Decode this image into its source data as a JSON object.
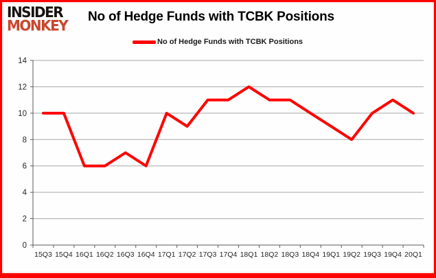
{
  "logo": {
    "line1": "INSIDER",
    "line2": "MONKEY"
  },
  "header": {
    "title": "No of Hedge Funds with TCBK Positions"
  },
  "legend": {
    "label": "No of Hedge Funds with TCBK Positions"
  },
  "colors": {
    "line": "#fe0000",
    "border": "#fe0000",
    "grid": "#a6a6a6",
    "axis": "#595959",
    "tick_label": "#262626",
    "logo_black": "#171310",
    "logo_red": "#c8472e",
    "background": "#fefefe"
  },
  "chart_data": {
    "type": "line",
    "title": "No of Hedge Funds with TCBK Positions",
    "series_name": "No of Hedge Funds with TCBK Positions",
    "categories": [
      "15Q3",
      "15Q4",
      "16Q1",
      "16Q2",
      "16Q3",
      "16Q4",
      "17Q1",
      "17Q2",
      "17Q3",
      "17Q4",
      "18Q1",
      "18Q2",
      "18Q3",
      "18Q4",
      "19Q1",
      "19Q2",
      "19Q3",
      "19Q4",
      "20Q1"
    ],
    "values": [
      10,
      10,
      6,
      6,
      7,
      6,
      10,
      9,
      11,
      11,
      12,
      11,
      11,
      10,
      9,
      8,
      10,
      11,
      10
    ],
    "xlabel": "",
    "ylabel": "",
    "ylim": [
      0,
      14
    ],
    "ytick_step": 2,
    "grid": true,
    "legend_position": "top-center",
    "line_width": 4
  }
}
